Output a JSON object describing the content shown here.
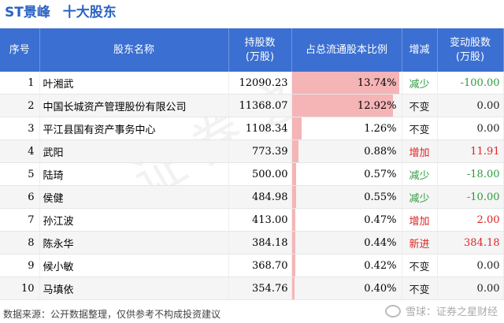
{
  "header": {
    "stock_name": "ST景峰",
    "section_title": "十大股东"
  },
  "table": {
    "columns": [
      "序号",
      "股东名称",
      "持股数\n(万股)",
      "占总流通股本比例",
      "增减",
      "变动股数\n(万股)"
    ],
    "rows": [
      {
        "idx": "1",
        "name": "叶湘武",
        "shares": "12090.23",
        "pct": "13.74%",
        "pct_value": 13.74,
        "change": "减少",
        "delta": "-100.00"
      },
      {
        "idx": "2",
        "name": "中国长城资产管理股份有限公司",
        "shares": "11368.07",
        "pct": "12.92%",
        "pct_value": 12.92,
        "change": "不变",
        "delta": "0.00"
      },
      {
        "idx": "3",
        "name": "平江县国有资产事务中心",
        "shares": "1108.34",
        "pct": "1.26%",
        "pct_value": 1.26,
        "change": "不变",
        "delta": "0.00"
      },
      {
        "idx": "4",
        "name": "武阳",
        "shares": "773.39",
        "pct": "0.88%",
        "pct_value": 0.88,
        "change": "增加",
        "delta": "11.91"
      },
      {
        "idx": "5",
        "name": "陆琦",
        "shares": "500.00",
        "pct": "0.57%",
        "pct_value": 0.57,
        "change": "减少",
        "delta": "-18.00"
      },
      {
        "idx": "6",
        "name": "侯健",
        "shares": "484.98",
        "pct": "0.55%",
        "pct_value": 0.55,
        "change": "减少",
        "delta": "-10.00"
      },
      {
        "idx": "7",
        "name": "孙江波",
        "shares": "413.00",
        "pct": "0.47%",
        "pct_value": 0.47,
        "change": "增加",
        "delta": "2.00"
      },
      {
        "idx": "8",
        "name": "陈永华",
        "shares": "384.18",
        "pct": "0.44%",
        "pct_value": 0.44,
        "change": "新进",
        "delta": "384.18"
      },
      {
        "idx": "9",
        "name": "候小敏",
        "shares": "368.70",
        "pct": "0.42%",
        "pct_value": 0.42,
        "change": "不变",
        "delta": "0.00"
      },
      {
        "idx": "10",
        "name": "马填依",
        "shares": "354.76",
        "pct": "0.40%",
        "pct_value": 0.4,
        "change": "不变",
        "delta": "0.00"
      }
    ]
  },
  "footer": {
    "source": "数据来源：公开数据整理，仅供参考不构成投资建议",
    "logo_text": "雪球：证券之星财经"
  },
  "watermark": "证券之星",
  "colors": {
    "header_bg": "#3b6fd1",
    "bar": "#f5b4b6",
    "decrease": "#2e9b3c",
    "increase": "#e02424"
  }
}
